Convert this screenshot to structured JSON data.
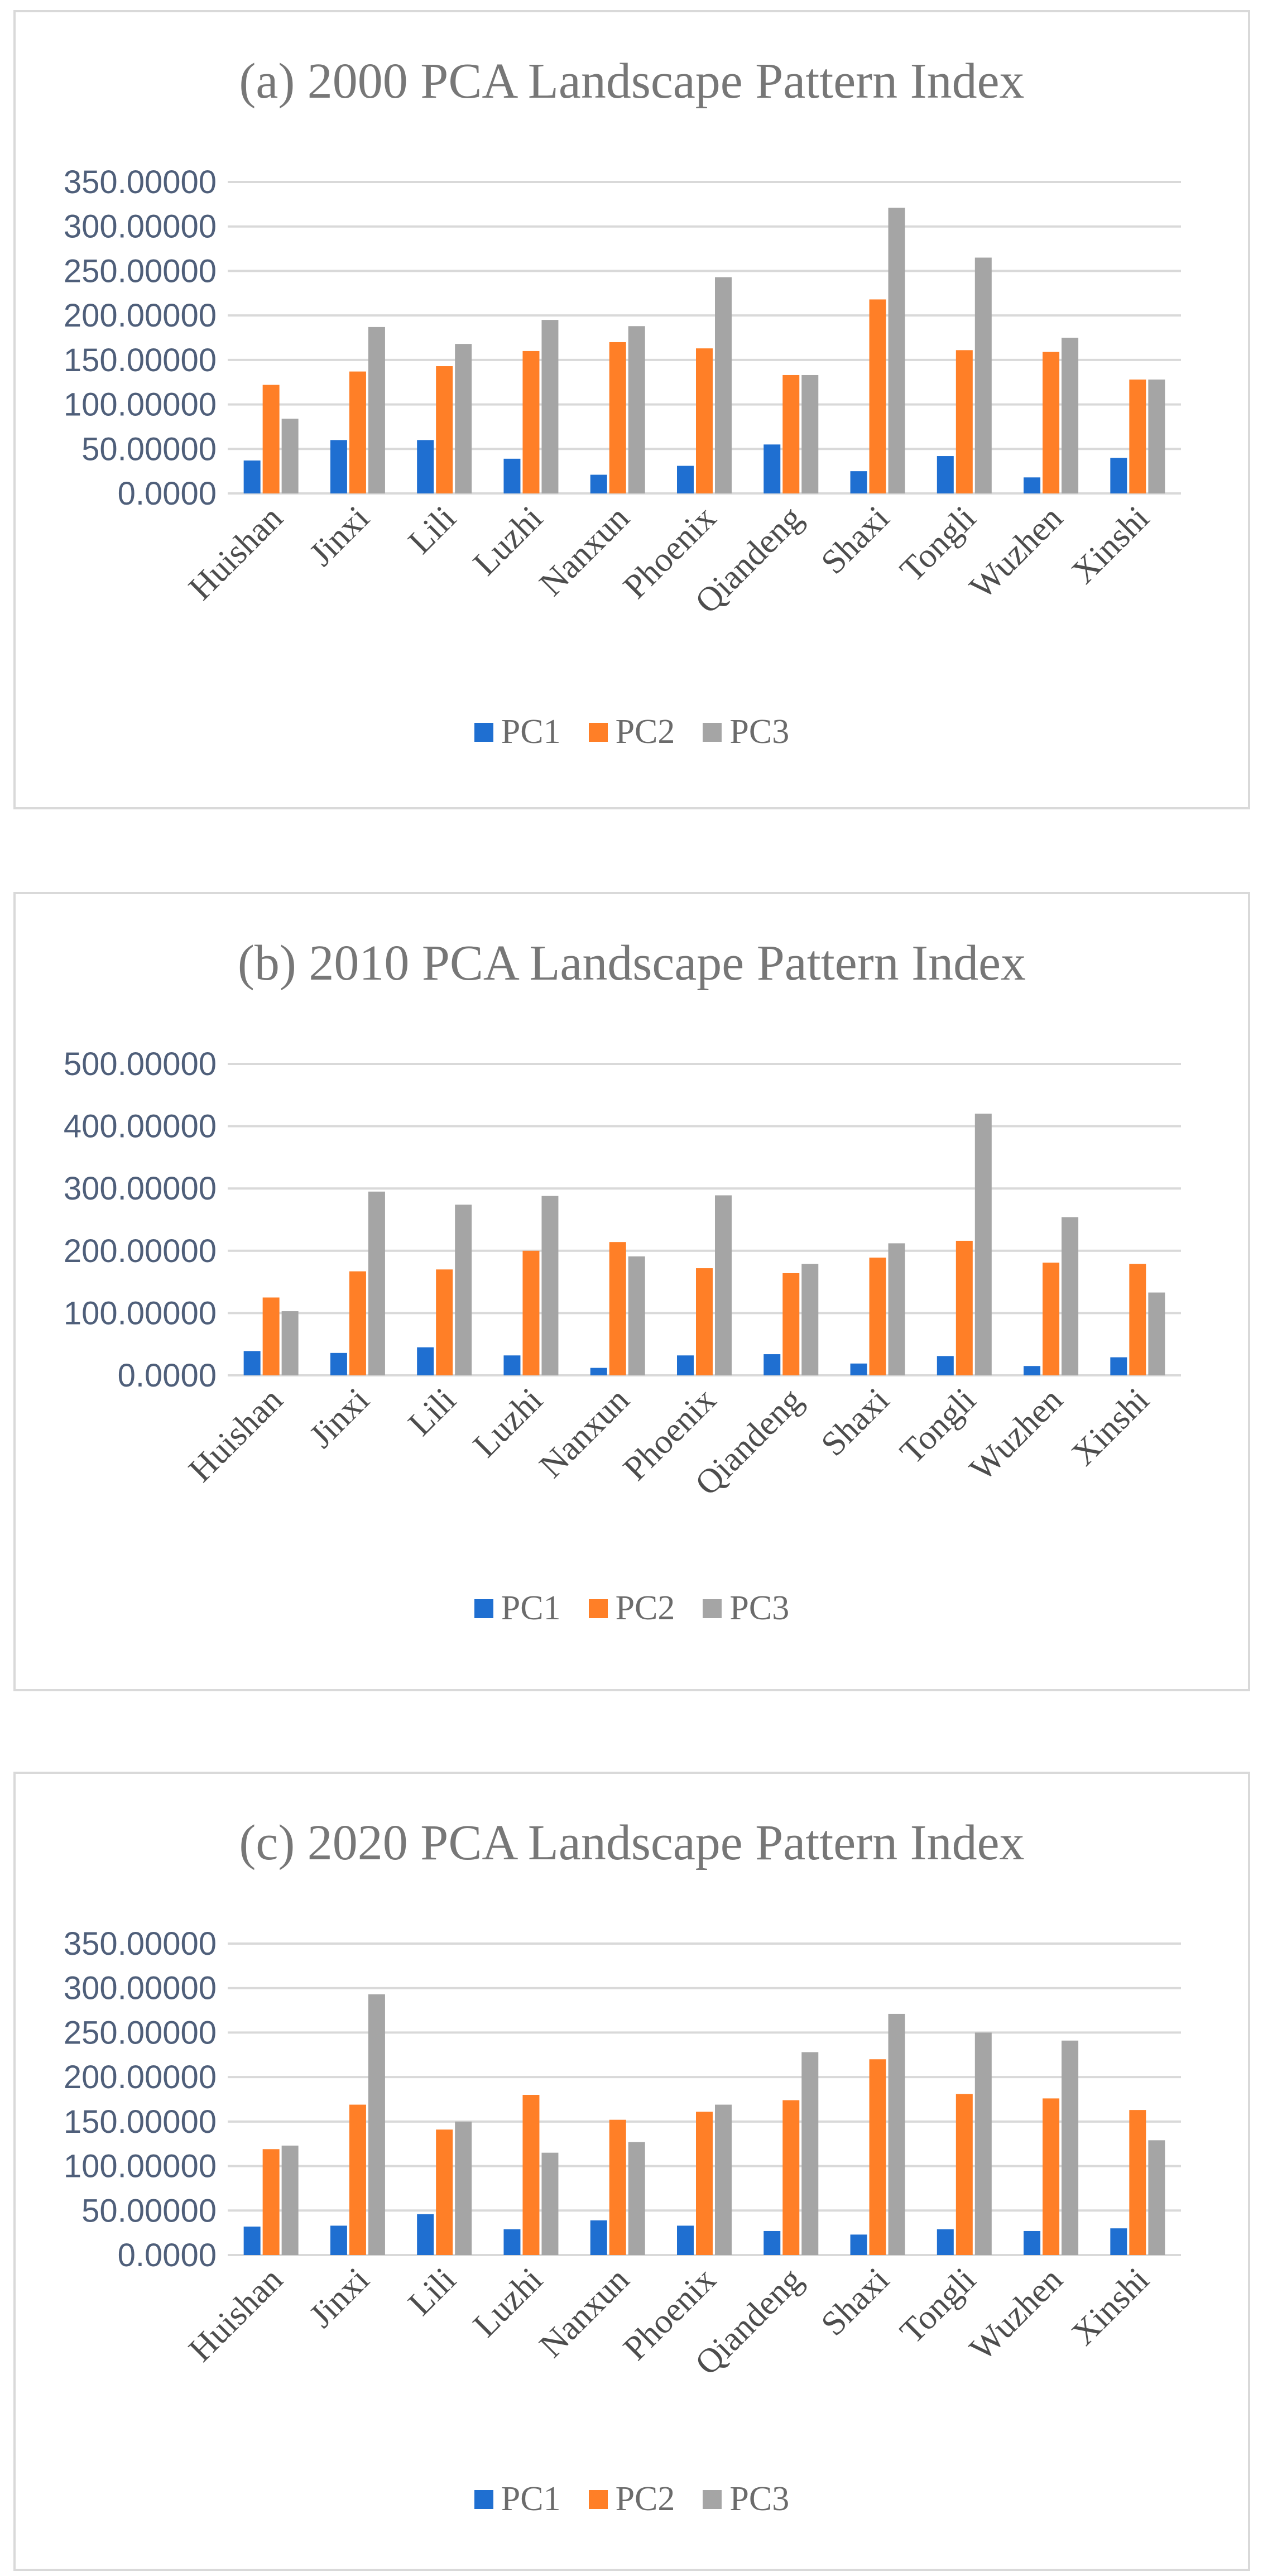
{
  "legend": {
    "items": [
      {
        "label": "PC1",
        "color": "#1f6fd1"
      },
      {
        "label": "PC2",
        "color": "#ff7f27"
      },
      {
        "label": "PC3",
        "color": "#a5a5a5"
      }
    ]
  },
  "chart_data": [
    {
      "type": "bar",
      "title": "(a) 2000 PCA Landscape Pattern Index",
      "categories": [
        "Huishan",
        "Jinxi",
        "Lili",
        "Luzhi",
        "Nanxun",
        "Phoenix",
        "Qiandeng",
        "Shaxi",
        "Tongli",
        "Wuzhen",
        "Xinshi"
      ],
      "series": [
        {
          "name": "PC1",
          "values": [
            37,
            60,
            60,
            39,
            21,
            31,
            55,
            25,
            42,
            18,
            40
          ]
        },
        {
          "name": "PC2",
          "values": [
            122,
            137,
            143,
            160,
            170,
            163,
            133,
            218,
            161,
            159,
            128
          ]
        },
        {
          "name": "PC3",
          "values": [
            84,
            187,
            168,
            195,
            188,
            243,
            133,
            321,
            265,
            175,
            128
          ]
        }
      ],
      "ylim": [
        0,
        350
      ],
      "yticks": [
        "0.0000",
        "50.00000",
        "100.00000",
        "150.00000",
        "200.00000",
        "250.00000",
        "300.00000",
        "350.00000"
      ],
      "grid": true,
      "legend_position": "bottom"
    },
    {
      "type": "bar",
      "title": "(b) 2010 PCA Landscape Pattern Index",
      "categories": [
        "Huishan",
        "Jinxi",
        "Lili",
        "Luzhi",
        "Nanxun",
        "Phoenix",
        "Qiandeng",
        "Shaxi",
        "Tongli",
        "Wuzhen",
        "Xinshi"
      ],
      "series": [
        {
          "name": "PC1",
          "values": [
            39,
            36,
            45,
            32,
            12,
            32,
            34,
            19,
            31,
            15,
            29
          ]
        },
        {
          "name": "PC2",
          "values": [
            125,
            167,
            170,
            200,
            214,
            172,
            164,
            189,
            216,
            181,
            179
          ]
        },
        {
          "name": "PC3",
          "values": [
            103,
            295,
            274,
            288,
            191,
            289,
            179,
            212,
            420,
            254,
            133
          ]
        }
      ],
      "ylim": [
        0,
        500
      ],
      "yticks": [
        "0.0000",
        "100.00000",
        "200.00000",
        "300.00000",
        "400.00000",
        "500.00000"
      ],
      "grid": true,
      "legend_position": "bottom"
    },
    {
      "type": "bar",
      "title": "(c) 2020 PCA Landscape Pattern Index",
      "categories": [
        "Huishan",
        "Jinxi",
        "Lili",
        "Luzhi",
        "Nanxun",
        "Phoenix",
        "Qiandeng",
        "Shaxi",
        "Tongli",
        "Wuzhen",
        "Xinshi"
      ],
      "series": [
        {
          "name": "PC1",
          "values": [
            32,
            33,
            46,
            29,
            39,
            33,
            27,
            23,
            29,
            27,
            30
          ]
        },
        {
          "name": "PC2",
          "values": [
            119,
            169,
            141,
            180,
            152,
            161,
            174,
            220,
            181,
            176,
            163
          ]
        },
        {
          "name": "PC3",
          "values": [
            123,
            293,
            150,
            115,
            127,
            169,
            228,
            271,
            250,
            241,
            129
          ]
        }
      ],
      "ylim": [
        0,
        350
      ],
      "yticks": [
        "0.0000",
        "50.00000",
        "100.00000",
        "150.00000",
        "200.00000",
        "250.00000",
        "300.00000",
        "350.00000"
      ],
      "grid": true,
      "legend_position": "bottom"
    }
  ]
}
